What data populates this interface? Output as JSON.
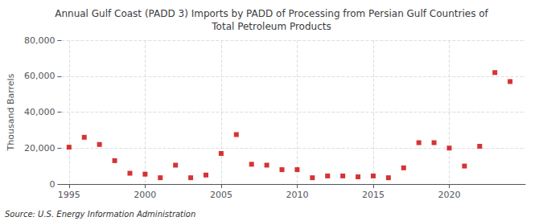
{
  "chart_data": {
    "type": "scatter",
    "title": "Annual Gulf Coast (PADD 3) Imports by PADD of Processing from Persian Gulf Countries of\nTotal Petroleum Products",
    "ylabel": "Thousand Barrels",
    "source": "Source: U.S. Energy Information Administration",
    "color": "#cc0000",
    "marker": "square",
    "grid": true,
    "x": [
      1995,
      1996,
      1997,
      1998,
      1999,
      2000,
      2001,
      2002,
      2003,
      2004,
      2005,
      2006,
      2007,
      2008,
      2009,
      2010,
      2011,
      2012,
      2013,
      2014,
      2015,
      2016,
      2017,
      2018,
      2019,
      2020,
      2021,
      2022,
      2023,
      2024
    ],
    "values": [
      20500,
      26000,
      22000,
      13000,
      6000,
      5500,
      3500,
      10500,
      3500,
      5000,
      17000,
      27500,
      11000,
      10500,
      8000,
      8000,
      3500,
      4500,
      4500,
      4000,
      4500,
      3500,
      9000,
      23000,
      23000,
      20000,
      10000,
      21000,
      62000,
      57000
    ],
    "xlim": [
      1994.5,
      2025
    ],
    "xticks": [
      1995,
      2000,
      2005,
      2010,
      2015,
      2020
    ],
    "ylim": [
      0,
      80000
    ],
    "yticks": [
      0,
      {
        "value": 20000,
        "label": "20,000"
      },
      {
        "value": 40000,
        "label": "40,000"
      },
      {
        "value": 60000,
        "label": "60,000"
      },
      {
        "value": 80000,
        "label": "80,000"
      }
    ]
  }
}
